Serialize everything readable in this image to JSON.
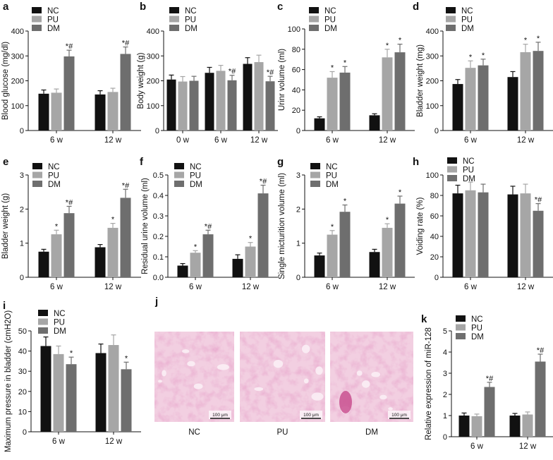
{
  "colors": {
    "NC": "#111111",
    "PU": "#a6a6a6",
    "DM": "#6e6e6e",
    "axis": "#111111",
    "tissue_bg": "#f2cfe1",
    "tissue_dark": "#c9508f"
  },
  "chart_data": [
    {
      "id": "a",
      "panel_label": "a",
      "type": "bar",
      "ylabel": "Blood glucose (mg/dl)",
      "yticks": [
        0,
        100,
        200,
        300,
        400
      ],
      "ylim": [
        0,
        400
      ],
      "categories": [
        "6 w",
        "12 w"
      ],
      "legend": [
        "NC",
        "PU",
        "DM"
      ],
      "series": [
        {
          "name": "NC",
          "values": [
            148,
            145
          ],
          "errors": [
            15,
            15
          ],
          "marks": [
            "",
            ""
          ]
        },
        {
          "name": "PU",
          "values": [
            152,
            155
          ],
          "errors": [
            15,
            15
          ],
          "marks": [
            "",
            ""
          ]
        },
        {
          "name": "DM",
          "values": [
            298,
            308
          ],
          "errors": [
            25,
            28
          ],
          "marks": [
            "*#",
            "*#"
          ]
        }
      ]
    },
    {
      "id": "b",
      "panel_label": "b",
      "type": "bar",
      "ylabel": "Body weight (g)",
      "yticks": [
        0,
        100,
        200,
        300,
        400
      ],
      "ylim": [
        0,
        400
      ],
      "categories": [
        "0 w",
        "6 w",
        "12 w"
      ],
      "legend": [
        "NC",
        "PU",
        "DM"
      ],
      "series": [
        {
          "name": "NC",
          "values": [
            205,
            232,
            268
          ],
          "errors": [
            18,
            22,
            25
          ],
          "marks": [
            "",
            "",
            ""
          ]
        },
        {
          "name": "PU",
          "values": [
            197,
            240,
            275
          ],
          "errors": [
            20,
            22,
            28
          ],
          "marks": [
            "",
            "",
            ""
          ]
        },
        {
          "name": "DM",
          "values": [
            200,
            202,
            198
          ],
          "errors": [
            18,
            20,
            20
          ],
          "marks": [
            "",
            "*#",
            "*#"
          ]
        }
      ]
    },
    {
      "id": "c",
      "panel_label": "c",
      "type": "bar",
      "ylabel": "Urinr volume (ml)",
      "yticks": [
        0,
        20,
        40,
        60,
        80,
        100
      ],
      "ylim": [
        0,
        100
      ],
      "categories": [
        "6 w",
        "12 w"
      ],
      "legend": [
        "NC",
        "PU",
        "DM"
      ],
      "series": [
        {
          "name": "NC",
          "values": [
            12,
            15
          ],
          "errors": [
            1.5,
            1.5
          ],
          "marks": [
            "",
            ""
          ]
        },
        {
          "name": "PU",
          "values": [
            52,
            72
          ],
          "errors": [
            6,
            8
          ],
          "marks": [
            "*",
            "*"
          ]
        },
        {
          "name": "DM",
          "values": [
            57,
            77
          ],
          "errors": [
            6,
            8
          ],
          "marks": [
            "*",
            "*"
          ]
        }
      ]
    },
    {
      "id": "d",
      "panel_label": "d",
      "type": "bar",
      "ylabel": "Bladder weight (mg)",
      "yticks": [
        0,
        100,
        200,
        300,
        400
      ],
      "ylim": [
        0,
        400
      ],
      "categories": [
        "6 w",
        "12 w"
      ],
      "legend": [
        "NC",
        "PU",
        "DM"
      ],
      "series": [
        {
          "name": "NC",
          "values": [
            187,
            215
          ],
          "errors": [
            18,
            22
          ],
          "marks": [
            "",
            ""
          ]
        },
        {
          "name": "PU",
          "values": [
            252,
            315
          ],
          "errors": [
            28,
            32
          ],
          "marks": [
            "*",
            "*"
          ]
        },
        {
          "name": "DM",
          "values": [
            262,
            320
          ],
          "errors": [
            25,
            35
          ],
          "marks": [
            "*",
            "*"
          ]
        }
      ]
    },
    {
      "id": "e",
      "panel_label": "e",
      "type": "bar",
      "ylabel": "Bladder weight (g)",
      "yticks": [
        0,
        1,
        2,
        3
      ],
      "ylim": [
        0,
        3
      ],
      "categories": [
        "6 w",
        "12 w"
      ],
      "legend": [
        "NC",
        "PU",
        "DM"
      ],
      "series": [
        {
          "name": "NC",
          "values": [
            0.75,
            0.88
          ],
          "errors": [
            0.07,
            0.08
          ],
          "marks": [
            "",
            ""
          ]
        },
        {
          "name": "PU",
          "values": [
            1.26,
            1.45
          ],
          "errors": [
            0.12,
            0.13
          ],
          "marks": [
            "*",
            "*"
          ]
        },
        {
          "name": "DM",
          "values": [
            1.88,
            2.33
          ],
          "errors": [
            0.2,
            0.25
          ],
          "marks": [
            "*#",
            "*#"
          ]
        }
      ]
    },
    {
      "id": "f",
      "panel_label": "f",
      "type": "bar",
      "ylabel": "Residual urine volume (ml)",
      "yticks": [
        "0.0",
        "0.1",
        "0.2",
        "0.3",
        "0.4",
        "0.5"
      ],
      "ylim": [
        0,
        0.5
      ],
      "categories": [
        "6 w",
        "12 w"
      ],
      "legend": [
        "NC",
        "PU",
        "DM"
      ],
      "series": [
        {
          "name": "NC",
          "values": [
            0.057,
            0.09
          ],
          "errors": [
            0.01,
            0.02
          ],
          "marks": [
            "",
            ""
          ]
        },
        {
          "name": "PU",
          "values": [
            0.12,
            0.15
          ],
          "errors": [
            0.01,
            0.02
          ],
          "marks": [
            "*",
            "*"
          ]
        },
        {
          "name": "DM",
          "values": [
            0.21,
            0.41
          ],
          "errors": [
            0.02,
            0.04
          ],
          "marks": [
            "*#",
            "*#"
          ]
        }
      ]
    },
    {
      "id": "g",
      "panel_label": "g",
      "type": "bar",
      "ylabel": "Single micturition volume (ml)",
      "yticks": [
        0,
        1,
        2,
        3
      ],
      "ylim": [
        0,
        3
      ],
      "categories": [
        "6 w",
        "12 w"
      ],
      "legend": [
        "NC",
        "PU",
        "DM"
      ],
      "series": [
        {
          "name": "NC",
          "values": [
            0.64,
            0.74
          ],
          "errors": [
            0.07,
            0.08
          ],
          "marks": [
            "",
            ""
          ]
        },
        {
          "name": "PU",
          "values": [
            1.25,
            1.45
          ],
          "errors": [
            0.12,
            0.12
          ],
          "marks": [
            "*",
            "*"
          ]
        },
        {
          "name": "DM",
          "values": [
            1.92,
            2.16
          ],
          "errors": [
            0.2,
            0.22
          ],
          "marks": [
            "*",
            "*"
          ]
        }
      ]
    },
    {
      "id": "h",
      "panel_label": "h",
      "type": "bar",
      "ylabel": "Voiding rate (%)",
      "yticks": [
        0,
        20,
        40,
        60,
        80,
        100
      ],
      "ylim": [
        0,
        100
      ],
      "categories": [
        "6 w",
        "12 w"
      ],
      "legend": [
        "NC",
        "PU",
        "DM"
      ],
      "series": [
        {
          "name": "NC",
          "values": [
            82,
            81
          ],
          "errors": [
            8,
            8
          ],
          "marks": [
            "",
            ""
          ]
        },
        {
          "name": "PU",
          "values": [
            85,
            82
          ],
          "errors": [
            8,
            9
          ],
          "marks": [
            "",
            ""
          ]
        },
        {
          "name": "DM",
          "values": [
            83,
            65
          ],
          "errors": [
            8,
            7
          ],
          "marks": [
            "",
            "*#"
          ]
        }
      ]
    },
    {
      "id": "i",
      "panel_label": "i",
      "type": "bar",
      "ylabel": "Maximum pressure in bladder (cmH2O)",
      "yticks": [
        0,
        10,
        20,
        30,
        40,
        50
      ],
      "ylim": [
        0,
        50
      ],
      "categories": [
        "6 w",
        "12 w"
      ],
      "legend": [
        "NC",
        "PU",
        "DM"
      ],
      "series": [
        {
          "name": "NC",
          "values": [
            42.5,
            39
          ],
          "errors": [
            4.5,
            4.5
          ],
          "marks": [
            "",
            ""
          ]
        },
        {
          "name": "PU",
          "values": [
            38.5,
            43
          ],
          "errors": [
            4,
            5
          ],
          "marks": [
            "",
            ""
          ]
        },
        {
          "name": "DM",
          "values": [
            33.5,
            31
          ],
          "errors": [
            3.5,
            3.5
          ],
          "marks": [
            "*",
            "*"
          ]
        }
      ]
    },
    {
      "id": "k",
      "panel_label": "k",
      "type": "bar",
      "ylabel": "Relative expression of miR-128",
      "yticks": [
        0,
        1,
        2,
        3,
        4,
        5
      ],
      "ylim": [
        0,
        5
      ],
      "categories": [
        "6 w",
        "12 w"
      ],
      "legend": [
        "NC",
        "PU",
        "DM"
      ],
      "series": [
        {
          "name": "NC",
          "values": [
            1.0,
            1.0
          ],
          "errors": [
            0.12,
            0.1
          ],
          "marks": [
            "",
            ""
          ]
        },
        {
          "name": "PU",
          "values": [
            0.97,
            1.05
          ],
          "errors": [
            0.1,
            0.12
          ],
          "marks": [
            "",
            ""
          ]
        },
        {
          "name": "DM",
          "values": [
            2.35,
            3.55
          ],
          "errors": [
            0.22,
            0.35
          ],
          "marks": [
            "*#",
            "*#"
          ]
        }
      ]
    }
  ],
  "histology": {
    "panel_label": "j",
    "images": [
      {
        "label": "NC",
        "scale_bar": "100 μm"
      },
      {
        "label": "PU",
        "scale_bar": "100 μm"
      },
      {
        "label": "DM",
        "scale_bar": "100 μm"
      }
    ]
  }
}
